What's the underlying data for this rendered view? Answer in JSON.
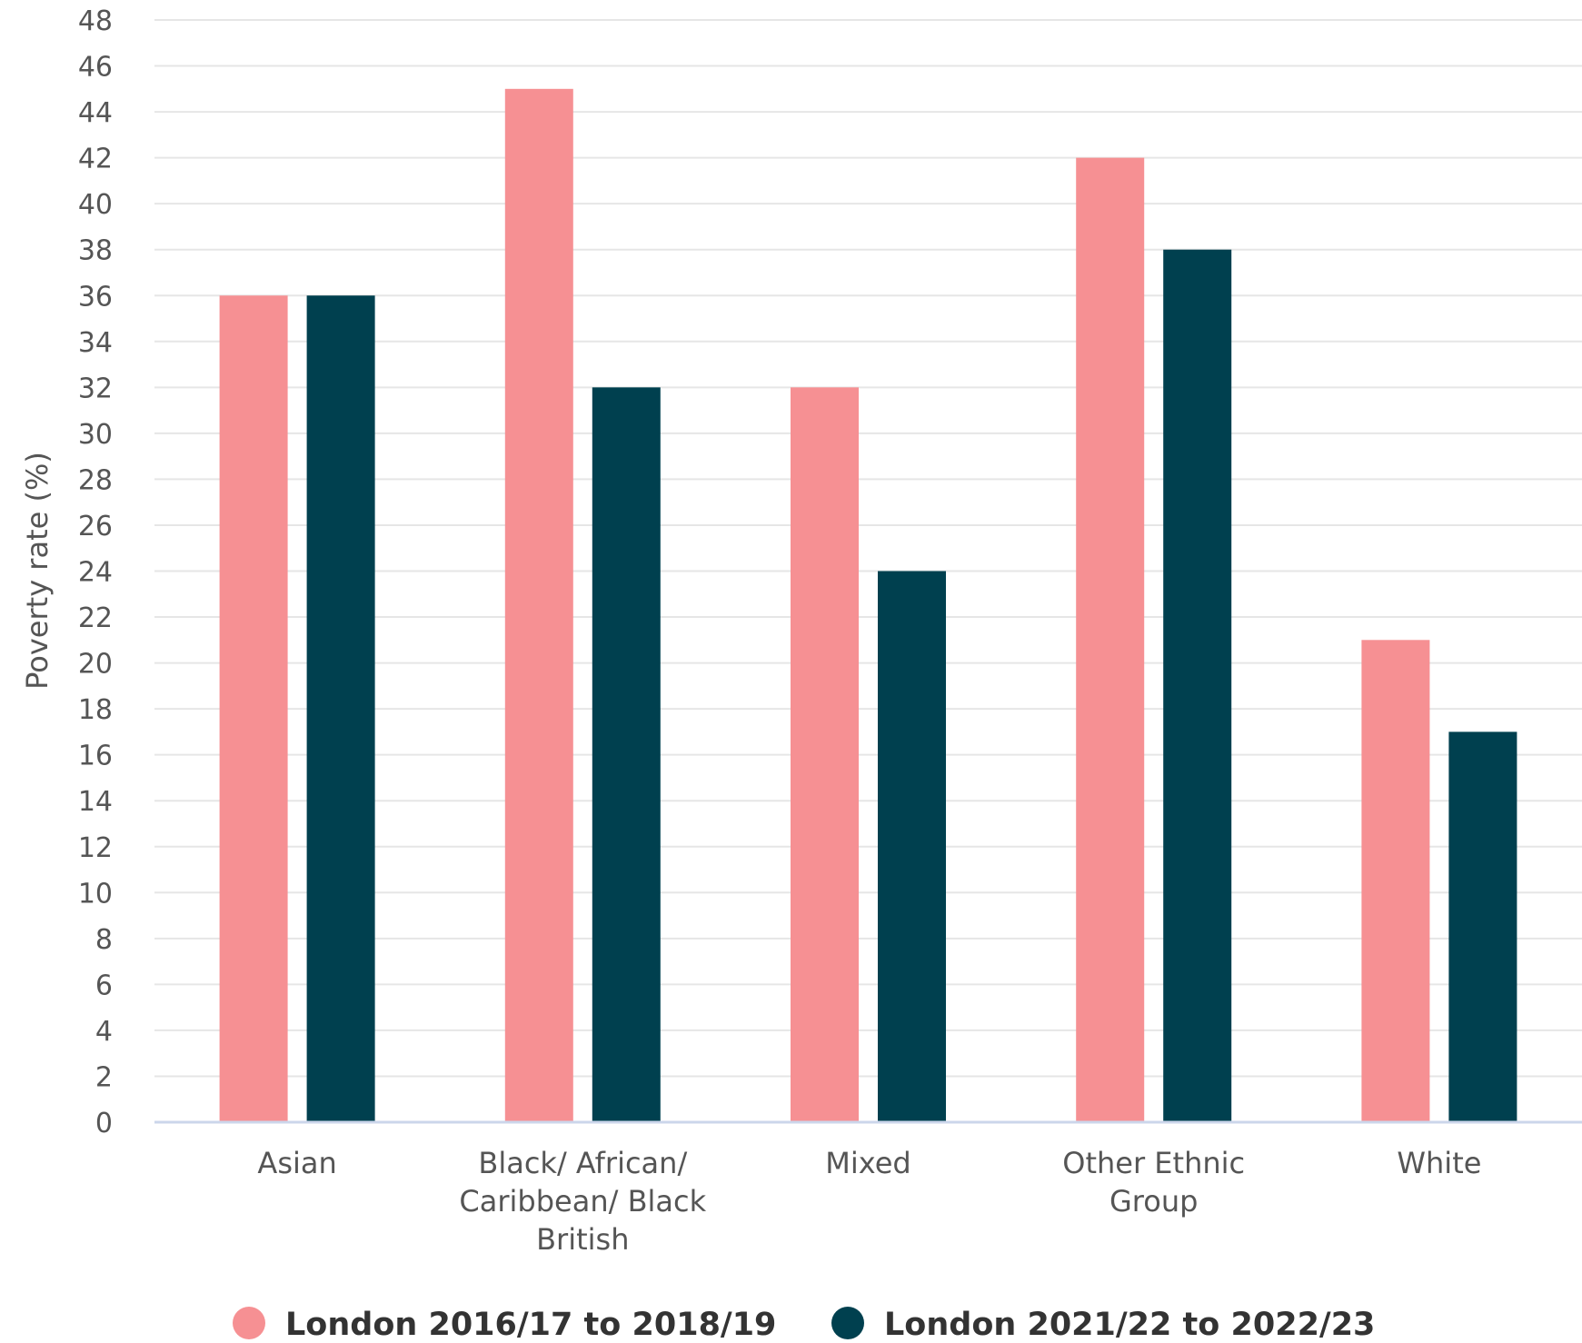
{
  "chart_data": {
    "type": "bar",
    "ylabel": "Poverty rate (%)",
    "ylim": [
      0,
      48
    ],
    "ytick_step": 2,
    "grid": true,
    "legend_position": "bottom",
    "categories": [
      [
        "Asian"
      ],
      [
        "Black/ African/",
        "Caribbean/ Black",
        "British"
      ],
      [
        "Mixed"
      ],
      [
        "Other Ethnic",
        "Group"
      ],
      [
        "White"
      ]
    ],
    "series": [
      {
        "name": "London 2016/17 to 2018/19",
        "color": "#f69093",
        "values": [
          36,
          45,
          32,
          42,
          21
        ]
      },
      {
        "name": "London 2021/22 to 2022/23",
        "color": "#00404f",
        "values": [
          36,
          32,
          24,
          38,
          17
        ]
      }
    ],
    "colors": {
      "grid": "#e6e6e6",
      "axis": "#ccd6eb",
      "text": "#555555"
    }
  }
}
